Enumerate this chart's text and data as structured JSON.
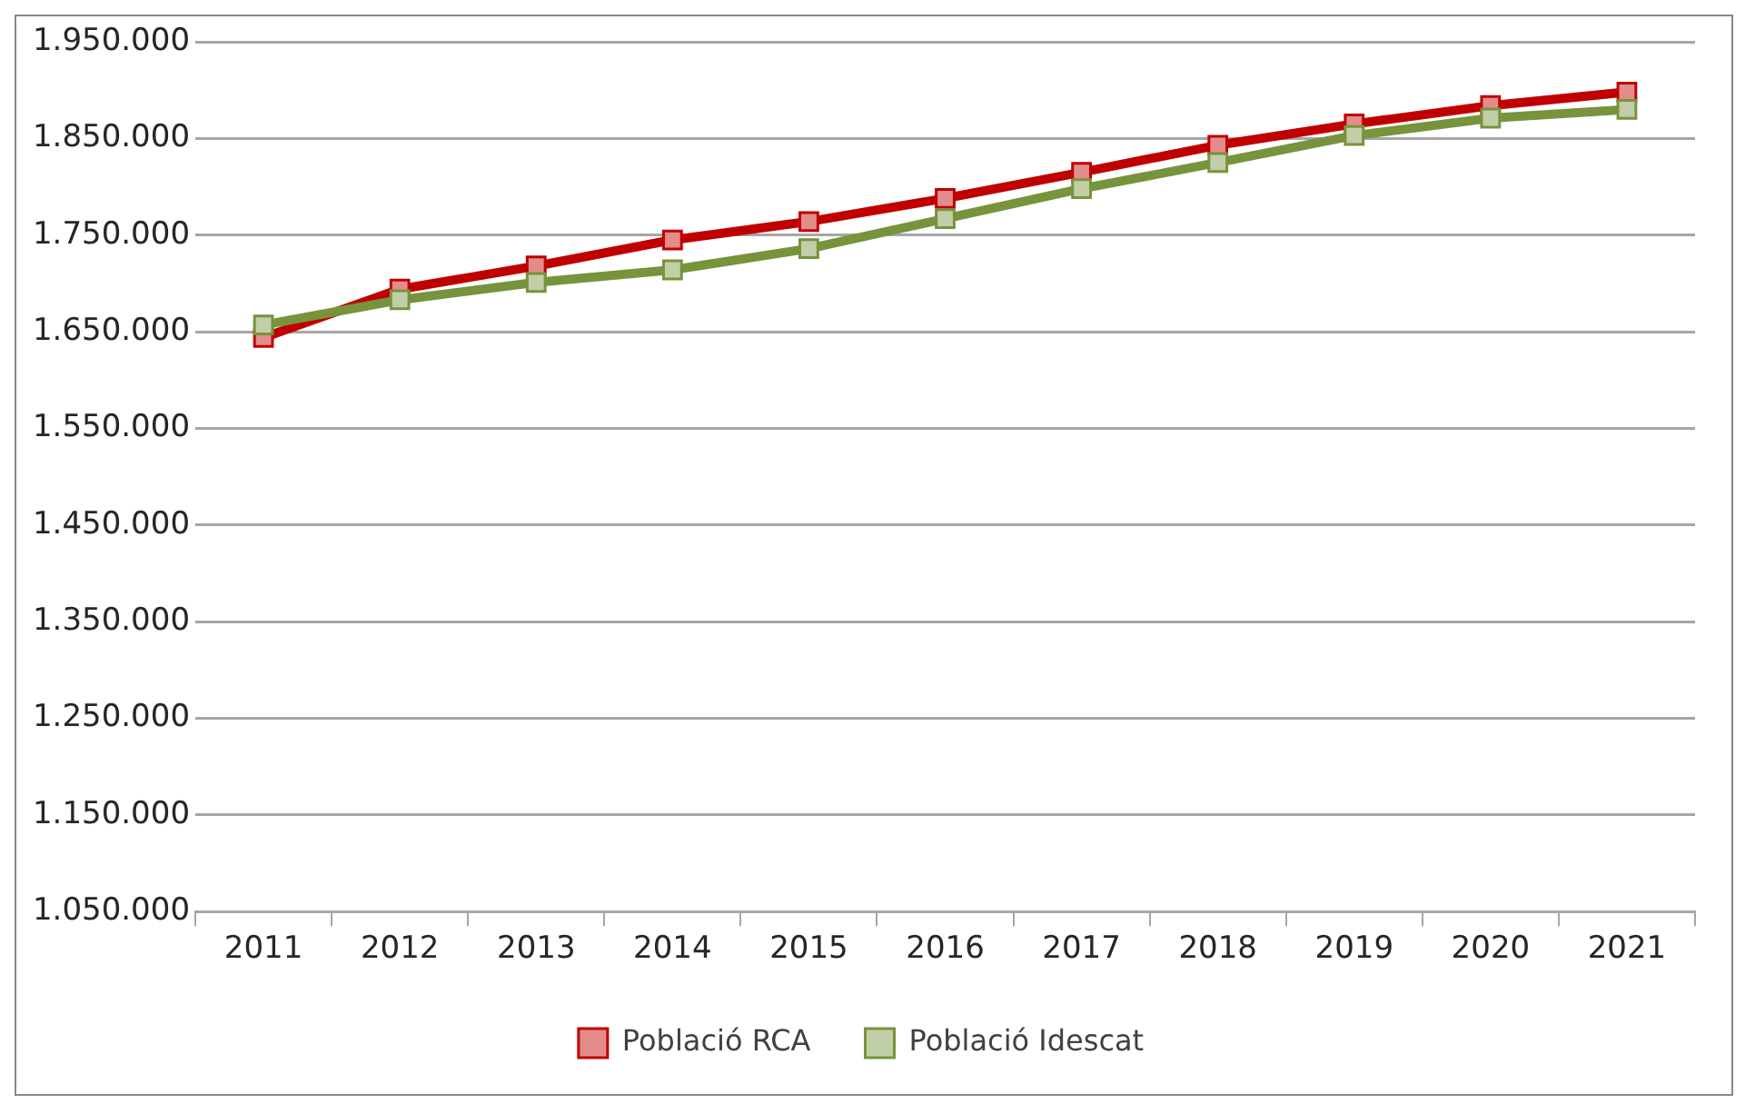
{
  "chart_data": {
    "type": "line",
    "categories": [
      "2011",
      "2012",
      "2013",
      "2014",
      "2015",
      "2016",
      "2017",
      "2018",
      "2019",
      "2020",
      "2021"
    ],
    "series": [
      {
        "name": "Població RCA",
        "color": "#c00000",
        "values": [
          1644000,
          1694000,
          1718000,
          1745000,
          1764000,
          1788000,
          1815000,
          1843000,
          1865000,
          1884000,
          1898000
        ]
      },
      {
        "name": "Població Idescat",
        "color": "#77933c",
        "values": [
          1657000,
          1683000,
          1701000,
          1714000,
          1736000,
          1767000,
          1798000,
          1825000,
          1853000,
          1871000,
          1880000
        ]
      }
    ],
    "ylim": [
      1050000,
      1950000
    ],
    "yticks": [
      {
        "value": 1050000,
        "label": "1.050.000"
      },
      {
        "value": 1150000,
        "label": "1.150.000"
      },
      {
        "value": 1250000,
        "label": "1.250.000"
      },
      {
        "value": 1350000,
        "label": "1.350.000"
      },
      {
        "value": 1450000,
        "label": "1.450.000"
      },
      {
        "value": 1550000,
        "label": "1.550.000"
      },
      {
        "value": 1650000,
        "label": "1.650.000"
      },
      {
        "value": 1750000,
        "label": "1.750.000"
      },
      {
        "value": 1850000,
        "label": "1.850.000"
      },
      {
        "value": 1950000,
        "label": "1.950.000"
      }
    ],
    "grid": "y",
    "legend": "bottom",
    "marker": "square",
    "line_style": "solid"
  }
}
